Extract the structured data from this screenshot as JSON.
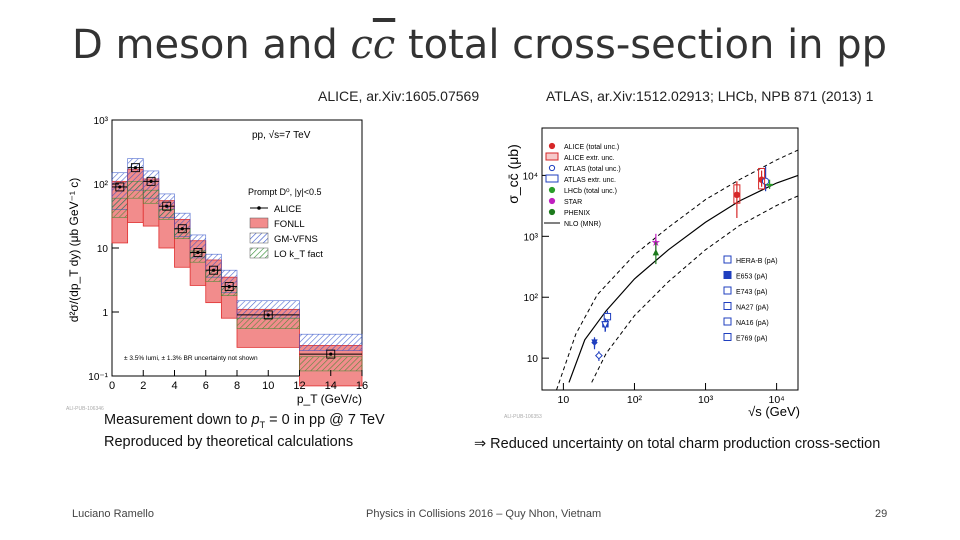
{
  "slide": {
    "title_prefix": "D meson and ",
    "title_cc": "cc",
    "title_suffix": " total cross-section in pp",
    "ref_left": "ALICE, ar.Xiv:1605.07569",
    "ref_right": "ATLAS, ar.Xiv:1512.02913; LHCb, NPB 871 (2013) 1",
    "caption_left_1_pre": "Measurement down to ",
    "caption_left_1_post": " = 0 in pp @ 7 TeV",
    "caption_left_2": "Reproduced by theoretical calculations",
    "caption_right": "⇒ Reduced uncertainty on total charm production cross-section",
    "footer_author": "Luciano Ramello",
    "footer_conf": "Physics in Collisions 2016 – Quy Nhon, Vietnam",
    "footer_page": "29"
  },
  "chart_data": [
    {
      "type": "bar",
      "ylabel": "d²σ/(dp_T dy) (μb GeV⁻¹ c)",
      "xlabel": "p_T (GeV/c)",
      "ylog": true,
      "ylim": [
        0.1,
        1000
      ],
      "xlim": [
        0,
        16
      ],
      "xticks": [
        "0",
        "2",
        "4",
        "6",
        "8",
        "10",
        "12",
        "14",
        "16"
      ],
      "yticks": [
        "10⁻¹",
        "1",
        "10",
        "10²",
        "10³"
      ],
      "annotations": [
        "pp, √s=7 TeV",
        "Prompt D⁰, |y|<0.5",
        "± 3.5% lumi, ± 1.3% BR uncertainty not shown"
      ],
      "legend": [
        "ALICE",
        "FONLL",
        "GM-VFNS",
        "LO k_T fact"
      ],
      "watermark": "ALI-PUB-106346",
      "bins": [
        [
          0,
          1
        ],
        [
          1,
          2
        ],
        [
          2,
          3
        ],
        [
          3,
          4
        ],
        [
          4,
          5
        ],
        [
          5,
          6
        ],
        [
          6,
          7
        ],
        [
          7,
          8
        ],
        [
          8,
          12
        ],
        [
          12,
          16
        ]
      ],
      "series": [
        {
          "name": "ALICE",
          "values": [
            90,
            180,
            110,
            45,
            20,
            8.5,
            4.5,
            2.5,
            0.9,
            0.22
          ]
        },
        {
          "name": "FONLL",
          "lo": [
            12,
            25,
            22,
            10,
            5,
            2.6,
            1.4,
            0.8,
            0.28,
            0.07
          ],
          "hi": [
            110,
            170,
            120,
            55,
            28,
            13,
            6.5,
            3.5,
            1.1,
            0.3
          ]
        },
        {
          "name": "GM-VFNS",
          "lo": [
            40,
            80,
            60,
            30,
            15,
            7,
            3.5,
            2,
            0.8,
            0.25
          ],
          "hi": [
            150,
            250,
            160,
            70,
            35,
            16,
            8,
            4.5,
            1.5,
            0.45
          ]
        },
        {
          "name": "LO k_T fact",
          "lo": [
            30,
            60,
            50,
            28,
            14,
            6,
            3,
            1.8,
            0.55,
            0.12
          ],
          "hi": [
            60,
            110,
            80,
            40,
            20,
            9,
            4.5,
            2.5,
            0.8,
            0.2
          ]
        }
      ]
    },
    {
      "type": "scatter",
      "ylabel": "σ_cc̄ (μb)",
      "xlabel": "√s (GeV)",
      "xlog": true,
      "ylog": true,
      "xlim": [
        5,
        20000
      ],
      "ylim": [
        3,
        60000
      ],
      "xticks": [
        "10",
        "10²",
        "10³",
        "10⁴"
      ],
      "yticks": [
        "10",
        "10²",
        "10³",
        "10⁴"
      ],
      "legend": [
        "ALICE (total unc.)",
        "ALICE extr. unc.",
        "ATLAS (total unc.)",
        "ATLAS extr. unc.",
        "LHCb (total unc.)",
        "STAR",
        "PHENIX",
        "NLO (MNR)",
        "HERA-B (pA)",
        "E653 (pA)",
        "E743 (pA)",
        "NA27 (pA)",
        "NA16 (pA)",
        "E769 (pA)"
      ],
      "watermark": "ALI-PUB-106353",
      "points": [
        {
          "name": "ALICE 2.76",
          "x": 2760,
          "y": 4800,
          "yerr": [
            2000,
            8000
          ],
          "color": "#d62728",
          "marker": "circle"
        },
        {
          "name": "ALICE 7",
          "x": 7000,
          "y": 8500,
          "yerr": [
            6500,
            12000
          ],
          "color": "#d62728",
          "marker": "circle"
        },
        {
          "name": "ATLAS 7",
          "x": 7000,
          "y": 8000,
          "yerr": [
            5500,
            14000
          ],
          "color": "#1f3fbf",
          "marker": "open-circle"
        },
        {
          "name": "LHCb 7",
          "x": 7000,
          "y": 7000,
          "yerr": [
            6000,
            8500
          ],
          "color": "#2a9d2a",
          "marker": "cross"
        },
        {
          "name": "STAR",
          "x": 200,
          "y": 800,
          "yerr": [
            550,
            1100
          ],
          "color": "#c020c0",
          "marker": "star"
        },
        {
          "name": "PHENIX",
          "x": 200,
          "y": 550,
          "yerr": [
            350,
            800
          ],
          "color": "#1d7a1d",
          "marker": "triangle"
        },
        {
          "name": "HERA-B",
          "x": 41.6,
          "y": 48,
          "yerr": [
            40,
            60
          ],
          "color": "#1f3fbf",
          "marker": "open-square"
        },
        {
          "name": "E653",
          "x": 39,
          "y": 36,
          "yerr": [
            28,
            44
          ],
          "color": "#1f3fbf",
          "marker": "square"
        },
        {
          "name": "E743",
          "x": 38.7,
          "y": 35,
          "yerr": [
            27,
            45
          ],
          "color": "#1f3fbf",
          "marker": "open-triangle-down"
        },
        {
          "name": "NA27",
          "x": 27.4,
          "y": 18,
          "yerr": [
            15,
            21
          ],
          "color": "#1f3fbf",
          "marker": "triangle-down"
        },
        {
          "name": "NA16",
          "x": 27.4,
          "y": 18,
          "yerr": [
            14,
            22
          ],
          "color": "#1f3fbf",
          "marker": "diamond"
        },
        {
          "name": "E769",
          "x": 31.6,
          "y": 11,
          "yerr": [
            9,
            13
          ],
          "color": "#1f3fbf",
          "marker": "open-diamond"
        }
      ],
      "nlo_central": [
        [
          12,
          4
        ],
        [
          20,
          20
        ],
        [
          40,
          60
        ],
        [
          100,
          200
        ],
        [
          300,
          600
        ],
        [
          1000,
          1700
        ],
        [
          3000,
          3800
        ],
        [
          10000,
          7500
        ],
        [
          20000,
          10000
        ]
      ],
      "nlo_low": [
        [
          25,
          4
        ],
        [
          40,
          12
        ],
        [
          100,
          50
        ],
        [
          300,
          180
        ],
        [
          1000,
          600
        ],
        [
          3000,
          1500
        ],
        [
          10000,
          3200
        ],
        [
          20000,
          4600
        ]
      ],
      "nlo_high": [
        [
          8,
          3
        ],
        [
          15,
          25
        ],
        [
          30,
          110
        ],
        [
          100,
          500
        ],
        [
          300,
          1400
        ],
        [
          1000,
          4000
        ],
        [
          3000,
          8500
        ],
        [
          10000,
          18000
        ],
        [
          20000,
          26000
        ]
      ]
    }
  ]
}
